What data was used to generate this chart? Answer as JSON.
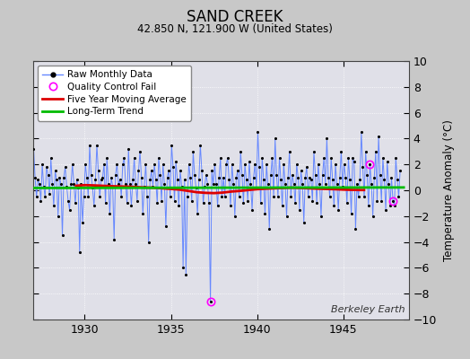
{
  "title": "SAND CREEK",
  "subtitle": "42.850 N, 121.900 W (United States)",
  "ylabel": "Temperature Anomaly (°C)",
  "watermark": "Berkeley Earth",
  "xlim": [
    1927.0,
    1948.8
  ],
  "ylim": [
    -10,
    10
  ],
  "yticks": [
    -10,
    -8,
    -6,
    -4,
    -2,
    0,
    2,
    4,
    6,
    8,
    10
  ],
  "xticks": [
    1930,
    1935,
    1940,
    1945
  ],
  "bg_color": "#c8c8c8",
  "plot_bg_color": "#e0e0e8",
  "raw_line_color": "#6688ff",
  "raw_marker_color": "#000000",
  "moving_avg_color": "#dd0000",
  "trend_color": "#00bb00",
  "qc_fail_color": "#ff00ff",
  "raw_data": {
    "times": [
      1927.042,
      1927.125,
      1927.208,
      1927.292,
      1927.375,
      1927.458,
      1927.542,
      1927.625,
      1927.708,
      1927.792,
      1927.875,
      1927.958,
      1928.042,
      1928.125,
      1928.208,
      1928.292,
      1928.375,
      1928.458,
      1928.542,
      1928.625,
      1928.708,
      1928.792,
      1928.875,
      1928.958,
      1929.042,
      1929.125,
      1929.208,
      1929.292,
      1929.375,
      1929.458,
      1929.542,
      1929.625,
      1929.708,
      1929.792,
      1929.875,
      1929.958,
      1930.042,
      1930.125,
      1930.208,
      1930.292,
      1930.375,
      1930.458,
      1930.542,
      1930.625,
      1930.708,
      1930.792,
      1930.875,
      1930.958,
      1931.042,
      1931.125,
      1931.208,
      1931.292,
      1931.375,
      1931.458,
      1931.542,
      1931.625,
      1931.708,
      1931.792,
      1931.875,
      1931.958,
      1932.042,
      1932.125,
      1932.208,
      1932.292,
      1932.375,
      1932.458,
      1932.542,
      1932.625,
      1932.708,
      1932.792,
      1932.875,
      1932.958,
      1933.042,
      1933.125,
      1933.208,
      1933.292,
      1933.375,
      1933.458,
      1933.542,
      1933.625,
      1933.708,
      1933.792,
      1933.875,
      1933.958,
      1934.042,
      1934.125,
      1934.208,
      1934.292,
      1934.375,
      1934.458,
      1934.542,
      1934.625,
      1934.708,
      1934.792,
      1934.875,
      1934.958,
      1935.042,
      1935.125,
      1935.208,
      1935.292,
      1935.375,
      1935.458,
      1935.542,
      1935.625,
      1935.708,
      1935.792,
      1935.875,
      1935.958,
      1936.042,
      1936.125,
      1936.208,
      1936.292,
      1936.375,
      1936.458,
      1936.542,
      1936.625,
      1936.708,
      1936.792,
      1936.875,
      1936.958,
      1937.042,
      1937.125,
      1937.208,
      1937.292,
      1937.375,
      1937.458,
      1937.542,
      1937.625,
      1937.708,
      1937.792,
      1937.875,
      1937.958,
      1938.042,
      1938.125,
      1938.208,
      1938.292,
      1938.375,
      1938.458,
      1938.542,
      1938.625,
      1938.708,
      1938.792,
      1938.875,
      1938.958,
      1939.042,
      1939.125,
      1939.208,
      1939.292,
      1939.375,
      1939.458,
      1939.542,
      1939.625,
      1939.708,
      1939.792,
      1939.875,
      1939.958,
      1940.042,
      1940.125,
      1940.208,
      1940.292,
      1940.375,
      1940.458,
      1940.542,
      1940.625,
      1940.708,
      1940.792,
      1940.875,
      1940.958,
      1941.042,
      1941.125,
      1941.208,
      1941.292,
      1941.375,
      1941.458,
      1941.542,
      1941.625,
      1941.708,
      1941.792,
      1941.875,
      1941.958,
      1942.042,
      1942.125,
      1942.208,
      1942.292,
      1942.375,
      1942.458,
      1942.542,
      1942.625,
      1942.708,
      1942.792,
      1942.875,
      1942.958,
      1943.042,
      1943.125,
      1943.208,
      1943.292,
      1943.375,
      1943.458,
      1943.542,
      1943.625,
      1943.708,
      1943.792,
      1943.875,
      1943.958,
      1944.042,
      1944.125,
      1944.208,
      1944.292,
      1944.375,
      1944.458,
      1944.542,
      1944.625,
      1944.708,
      1944.792,
      1944.875,
      1944.958,
      1945.042,
      1945.125,
      1945.208,
      1945.292,
      1945.375,
      1945.458,
      1945.542,
      1945.625,
      1945.708,
      1945.792,
      1945.875,
      1945.958,
      1946.042,
      1946.125,
      1946.208,
      1946.292,
      1946.375,
      1946.458,
      1946.542,
      1946.625,
      1946.708,
      1946.792,
      1946.875,
      1946.958,
      1947.042,
      1947.125,
      1947.208,
      1947.292,
      1947.375,
      1947.458,
      1947.542,
      1947.625,
      1947.708,
      1947.792,
      1947.875,
      1947.958,
      1948.042,
      1948.125,
      1948.208,
      1948.292
    ],
    "values": [
      3.2,
      1.0,
      -0.5,
      0.8,
      0.5,
      -0.8,
      2.0,
      0.3,
      -0.5,
      1.8,
      1.2,
      -0.3,
      2.5,
      0.5,
      -1.2,
      1.5,
      0.8,
      -2.0,
      1.0,
      0.5,
      -3.5,
      1.0,
      1.8,
      0.3,
      -0.8,
      -1.5,
      0.5,
      2.0,
      0.5,
      -1.0,
      0.8,
      0.2,
      -4.8,
      0.5,
      -2.5,
      -0.5,
      2.0,
      1.0,
      -0.5,
      3.5,
      1.2,
      0.2,
      -1.2,
      0.8,
      3.5,
      1.5,
      -0.5,
      0.8,
      1.0,
      2.0,
      -1.0,
      2.5,
      0.5,
      -1.8,
      1.0,
      0.3,
      -3.8,
      1.2,
      2.0,
      0.5,
      0.8,
      -0.5,
      2.0,
      2.5,
      0.5,
      -1.0,
      3.2,
      0.5,
      -1.2,
      0.8,
      2.5,
      0.5,
      -0.8,
      1.5,
      3.0,
      1.0,
      -1.8,
      0.3,
      2.0,
      -0.5,
      -4.0,
      0.8,
      1.5,
      0.3,
      2.0,
      0.8,
      -1.0,
      2.5,
      1.2,
      -0.8,
      2.0,
      0.5,
      -2.8,
      1.0,
      1.5,
      -0.5,
      3.5,
      1.8,
      -0.8,
      2.2,
      0.8,
      -1.2,
      1.5,
      0.3,
      -6.0,
      0.8,
      -6.5,
      -0.5,
      2.0,
      1.0,
      -0.8,
      3.0,
      1.2,
      0.2,
      -1.8,
      0.8,
      3.5,
      1.5,
      -1.0,
      0.3,
      1.2,
      0.5,
      -1.0,
      -8.6,
      1.5,
      0.5,
      2.0,
      0.5,
      -1.2,
      1.0,
      2.5,
      -0.5,
      1.0,
      -0.5,
      2.0,
      2.5,
      0.8,
      -1.2,
      2.0,
      0.5,
      -2.0,
      1.0,
      1.5,
      -0.5,
      3.0,
      1.2,
      -1.0,
      2.0,
      0.8,
      -0.8,
      2.2,
      0.5,
      -1.5,
      1.0,
      2.0,
      0.2,
      4.5,
      1.8,
      -1.0,
      2.5,
      0.8,
      -1.8,
      2.0,
      0.5,
      -3.0,
      1.2,
      2.5,
      -0.5,
      4.0,
      1.2,
      -0.5,
      2.5,
      0.8,
      -1.2,
      2.0,
      0.5,
      -2.0,
      1.0,
      3.0,
      -0.5,
      1.2,
      0.5,
      -1.0,
      2.0,
      1.0,
      -1.5,
      1.5,
      0.5,
      -2.5,
      1.0,
      1.8,
      -0.5,
      1.0,
      0.8,
      -0.8,
      3.0,
      1.2,
      -1.0,
      2.0,
      0.5,
      -2.0,
      1.2,
      2.5,
      0.5,
      4.0,
      1.0,
      -0.5,
      2.5,
      0.8,
      -1.2,
      2.0,
      0.5,
      -1.5,
      1.0,
      3.0,
      0.3,
      2.0,
      1.0,
      -1.0,
      2.5,
      0.8,
      -1.8,
      2.5,
      2.2,
      -3.0,
      0.5,
      -0.5,
      0.8,
      4.5,
      1.8,
      -0.5,
      3.0,
      1.2,
      -1.2,
      2.0,
      0.5,
      -2.0,
      1.0,
      3.0,
      -0.8,
      4.2,
      1.2,
      -0.8,
      2.5,
      0.8,
      -1.5,
      2.2,
      0.5,
      -1.2,
      1.0,
      -0.8,
      -1.2,
      2.5,
      0.8,
      -0.5,
      1.5
    ]
  },
  "qc_fail_points": [
    {
      "time": 1937.292,
      "value": -8.6
    },
    {
      "time": 1946.542,
      "value": 2.0
    },
    {
      "time": 1947.875,
      "value": -0.8
    }
  ],
  "moving_avg": {
    "times": [
      1929.5,
      1930.0,
      1930.5,
      1931.0,
      1931.5,
      1932.0,
      1932.5,
      1933.0,
      1933.5,
      1934.0,
      1934.5,
      1935.0,
      1935.5,
      1936.0,
      1936.5,
      1937.0,
      1937.5,
      1938.0,
      1938.5,
      1939.0,
      1939.5,
      1940.0,
      1940.5,
      1941.0,
      1941.5,
      1942.0,
      1942.5,
      1943.0,
      1943.5,
      1944.0,
      1944.5,
      1945.0,
      1945.5,
      1946.0,
      1946.2
    ],
    "values": [
      0.35,
      0.4,
      0.38,
      0.35,
      0.32,
      0.3,
      0.28,
      0.25,
      0.22,
      0.2,
      0.15,
      0.1,
      0.05,
      -0.05,
      -0.15,
      -0.2,
      -0.22,
      -0.18,
      -0.1,
      -0.05,
      0.02,
      0.08,
      0.12,
      0.15,
      0.18,
      0.2,
      0.18,
      0.15,
      0.12,
      0.1,
      0.08,
      0.05,
      0.03,
      0.02,
      0.02
    ]
  },
  "trend": {
    "times": [
      1927.0,
      1948.5
    ],
    "values": [
      0.18,
      0.22
    ]
  }
}
